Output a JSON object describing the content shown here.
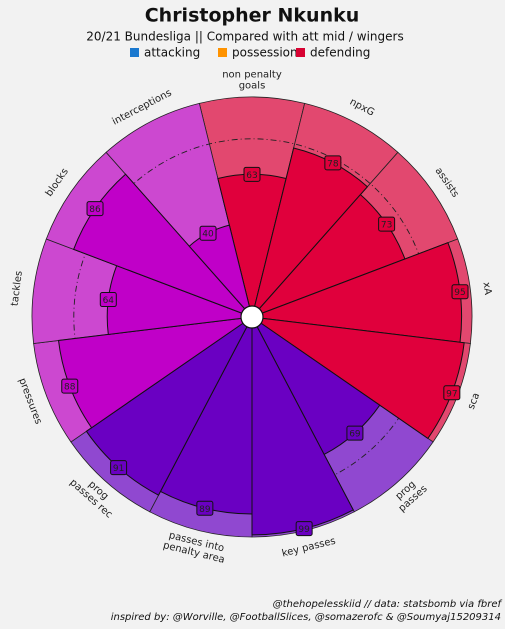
{
  "chart_data": {
    "type": "pizza",
    "title": "Christopher Nkunku",
    "subtitle": "20/21 Bundesliga || Compared with att mid / wingers",
    "legend": [
      {
        "name": "attacking",
        "color": "#1a78cf"
      },
      {
        "name": "possession",
        "color": "#ff9300"
      },
      {
        "name": "defending",
        "color": "#d70232"
      }
    ],
    "slice_colors": [
      "#e0003c",
      "#6a00c2",
      "#c000c8"
    ],
    "background_colors": [
      "#e2486f",
      "#9048d0",
      "#cc48d0"
    ],
    "categories": [
      "non penalty\ngoals",
      "npxG",
      "assists",
      "xA",
      "sca",
      "prog\npasses",
      "key passes",
      "passes into\npenalty area",
      "prog\npasses rec",
      "pressures",
      "tackles",
      "blocks",
      "interceptions"
    ],
    "category_group": [
      0,
      0,
      0,
      0,
      0,
      1,
      1,
      1,
      1,
      2,
      2,
      2,
      2
    ],
    "values": [
      63,
      78,
      73,
      95,
      97,
      69,
      99,
      89,
      91,
      88,
      64,
      86,
      40
    ],
    "rlim": [
      0,
      100
    ],
    "rticks": [
      80
    ],
    "credits": [
      "@thehopelesskiid // data: statsbomb via fbref",
      "inspired by: @Worville, @FootballSlices, @somazerofc & @Soumyaj15209314"
    ]
  }
}
